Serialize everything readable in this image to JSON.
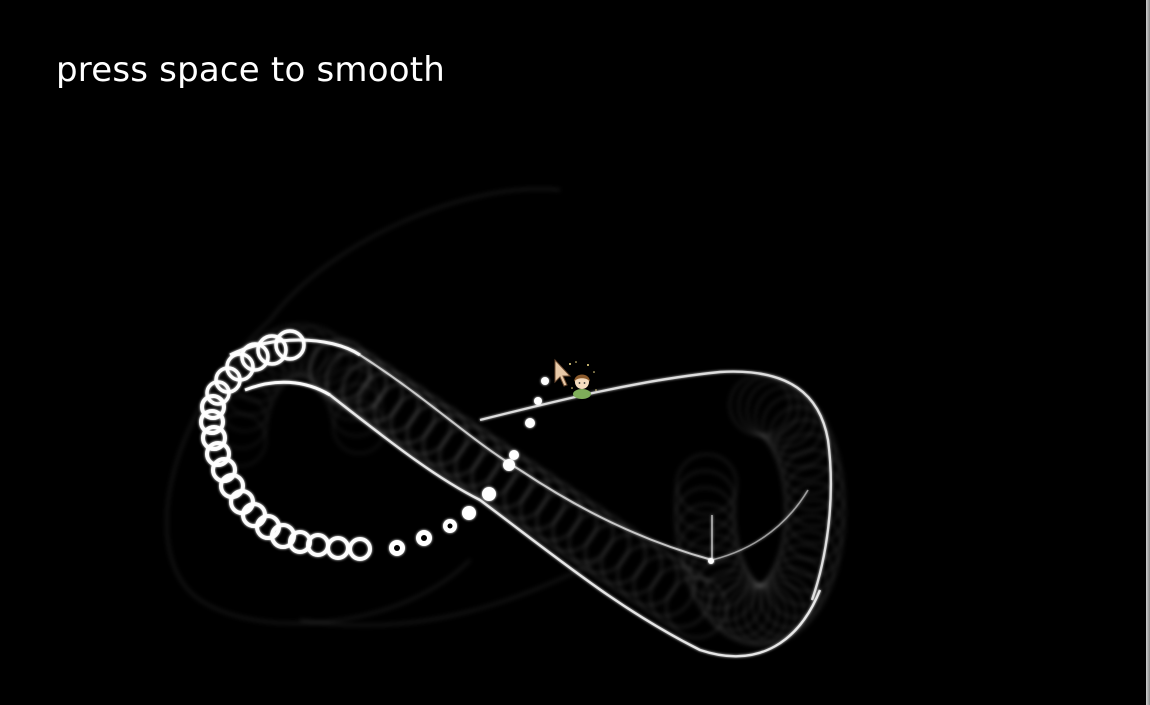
{
  "hint": {
    "text": "press space to smooth"
  },
  "colors": {
    "background": "#000000",
    "trail": "#ffffff",
    "border": "#a0a0a0",
    "cursor": "#e8c9a8",
    "character_hair": "#8b5a2b",
    "character_dress": "#7fae5a"
  },
  "icons": {
    "cursor": "arrow-cursor-icon",
    "character": "chibi-character-icon",
    "sparkles": "sparkle-icon"
  }
}
